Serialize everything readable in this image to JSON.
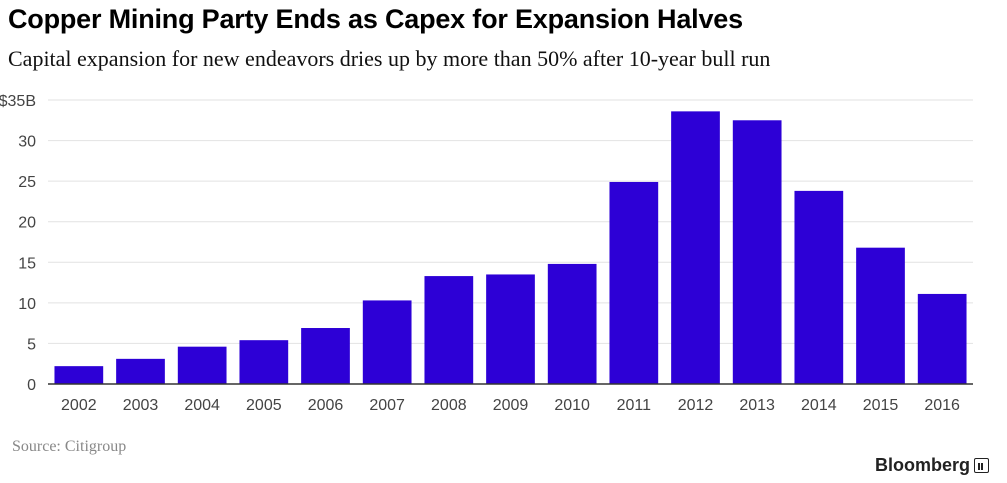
{
  "header": {
    "title": "Copper Mining Party Ends as Capex for Expansion Halves",
    "subtitle": "Capital expansion for new endeavors dries up by more than 50% after 10-year bull run"
  },
  "footer": {
    "source": "Source: Citigroup",
    "brand": "Bloomberg"
  },
  "colors": {
    "bar": "#2d00d6",
    "grid": "#e2e2e2",
    "axis": "#333333",
    "tick_text": "#444444"
  },
  "chart_data": {
    "type": "bar",
    "title": "Copper Mining Party Ends as Capex for Expansion Halves",
    "subtitle": "Capital expansion for new endeavors dries up by more than 50% after 10-year bull run",
    "xlabel": "",
    "ylabel": "",
    "categories": [
      "2002",
      "2003",
      "2004",
      "2005",
      "2006",
      "2007",
      "2008",
      "2009",
      "2010",
      "2011",
      "2012",
      "2013",
      "2014",
      "2015",
      "2016"
    ],
    "values": [
      2.2,
      3.1,
      4.6,
      5.4,
      6.9,
      10.3,
      13.3,
      13.5,
      14.8,
      24.9,
      33.6,
      32.5,
      23.8,
      16.8,
      11.1
    ],
    "ylim": [
      0,
      35
    ],
    "yticks": [
      0,
      5,
      10,
      15,
      20,
      25,
      30,
      35
    ],
    "ytick_labels": [
      "0",
      "5",
      "10",
      "15",
      "20",
      "25",
      "30",
      "$35B"
    ],
    "grid": true
  }
}
